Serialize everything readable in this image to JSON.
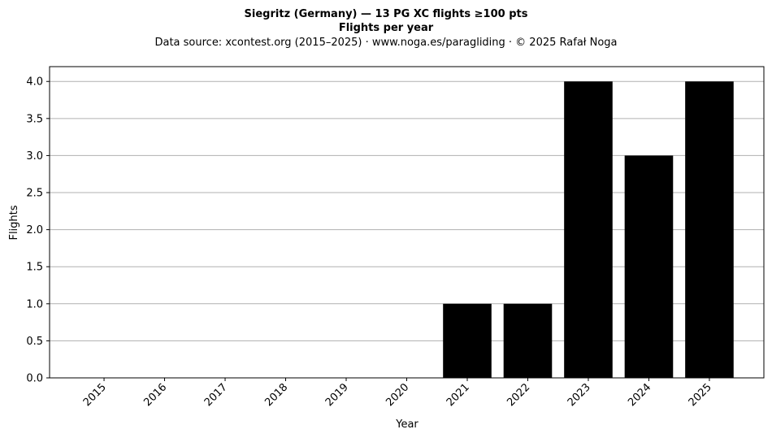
{
  "chart_data": {
    "type": "bar",
    "title": "Siegritz (Germany)  —  13 PG XC flights ≥100 pts",
    "subtitle": "Flights per year",
    "source_note": "Data source: xcontest.org (2015–2025)  ·  www.noga.es/paragliding  ·  © 2025 Rafał Noga",
    "xlabel": "Year",
    "ylabel": "Flights",
    "categories": [
      "2015",
      "2016",
      "2017",
      "2018",
      "2019",
      "2020",
      "2021",
      "2022",
      "2023",
      "2024",
      "2025"
    ],
    "values": [
      0,
      0,
      0,
      0,
      0,
      0,
      1,
      1,
      4,
      3,
      4
    ],
    "ylim": [
      0,
      4.2
    ],
    "yticks": [
      "0.0",
      "0.5",
      "1.0",
      "1.5",
      "2.0",
      "2.5",
      "3.0",
      "3.5",
      "4.0"
    ],
    "grid": "horizontal",
    "legend": "none",
    "bar_color": "#000000",
    "grid_color": "#b0b0b0"
  }
}
